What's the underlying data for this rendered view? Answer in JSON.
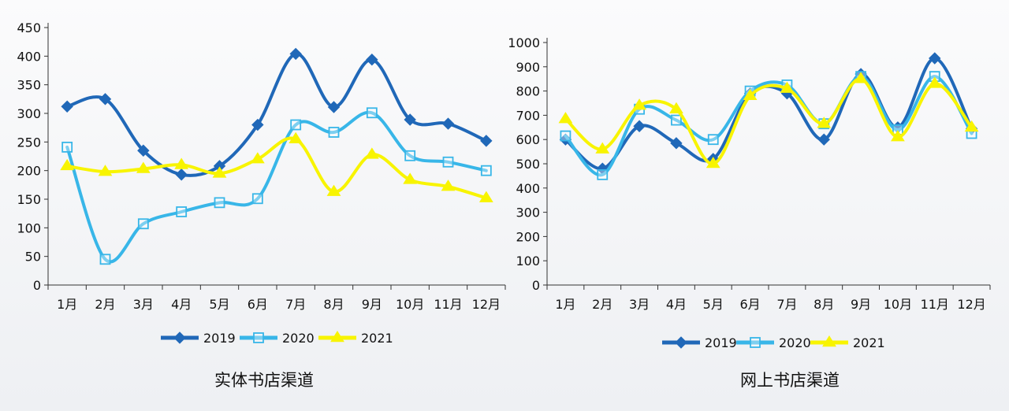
{
  "colors": {
    "2019": "#2068b8",
    "2020": "#38b6e8",
    "2021": "#f8f400",
    "axis": "#333333"
  },
  "chart_data": [
    {
      "type": "line",
      "title": "实体书店渠道",
      "categories": [
        "1月",
        "2月",
        "3月",
        "4月",
        "5月",
        "6月",
        "7月",
        "8月",
        "9月",
        "10月",
        "11月",
        "12月"
      ],
      "ylim": [
        0,
        450
      ],
      "yticks": [
        0,
        50,
        100,
        150,
        200,
        250,
        300,
        350,
        400,
        450
      ],
      "legend_position": "bottom",
      "grid": false,
      "series": [
        {
          "name": "2019",
          "marker": "diamond",
          "values": [
            312,
            325,
            235,
            193,
            208,
            280,
            404,
            311,
            394,
            289,
            282,
            252
          ]
        },
        {
          "name": "2020",
          "marker": "square-open",
          "values": [
            241,
            45,
            107,
            128,
            144,
            151,
            280,
            267,
            301,
            226,
            215,
            200
          ]
        },
        {
          "name": "2021",
          "marker": "triangle",
          "values": [
            208,
            198,
            203,
            210,
            195,
            220,
            255,
            163,
            228,
            184,
            172,
            152
          ]
        }
      ]
    },
    {
      "type": "line",
      "title": "网上书店渠道",
      "categories": [
        "1月",
        "2月",
        "3月",
        "4月",
        "5月",
        "6月",
        "7月",
        "8月",
        "9月",
        "10月",
        "11月",
        "12月"
      ],
      "ylim": [
        0,
        1000
      ],
      "yticks": [
        0,
        100,
        200,
        300,
        400,
        500,
        600,
        700,
        800,
        900,
        1000
      ],
      "legend_position": "bottom",
      "grid": false,
      "series": [
        {
          "name": "2019",
          "marker": "diamond",
          "values": [
            600,
            480,
            655,
            585,
            520,
            790,
            790,
            600,
            870,
            650,
            935,
            645
          ]
        },
        {
          "name": "2020",
          "marker": "square-open",
          "values": [
            615,
            455,
            725,
            680,
            600,
            800,
            825,
            665,
            860,
            640,
            860,
            625
          ]
        },
        {
          "name": "2021",
          "marker": "triangle",
          "values": [
            685,
            560,
            740,
            725,
            500,
            780,
            810,
            665,
            850,
            610,
            830,
            650
          ]
        }
      ]
    }
  ]
}
